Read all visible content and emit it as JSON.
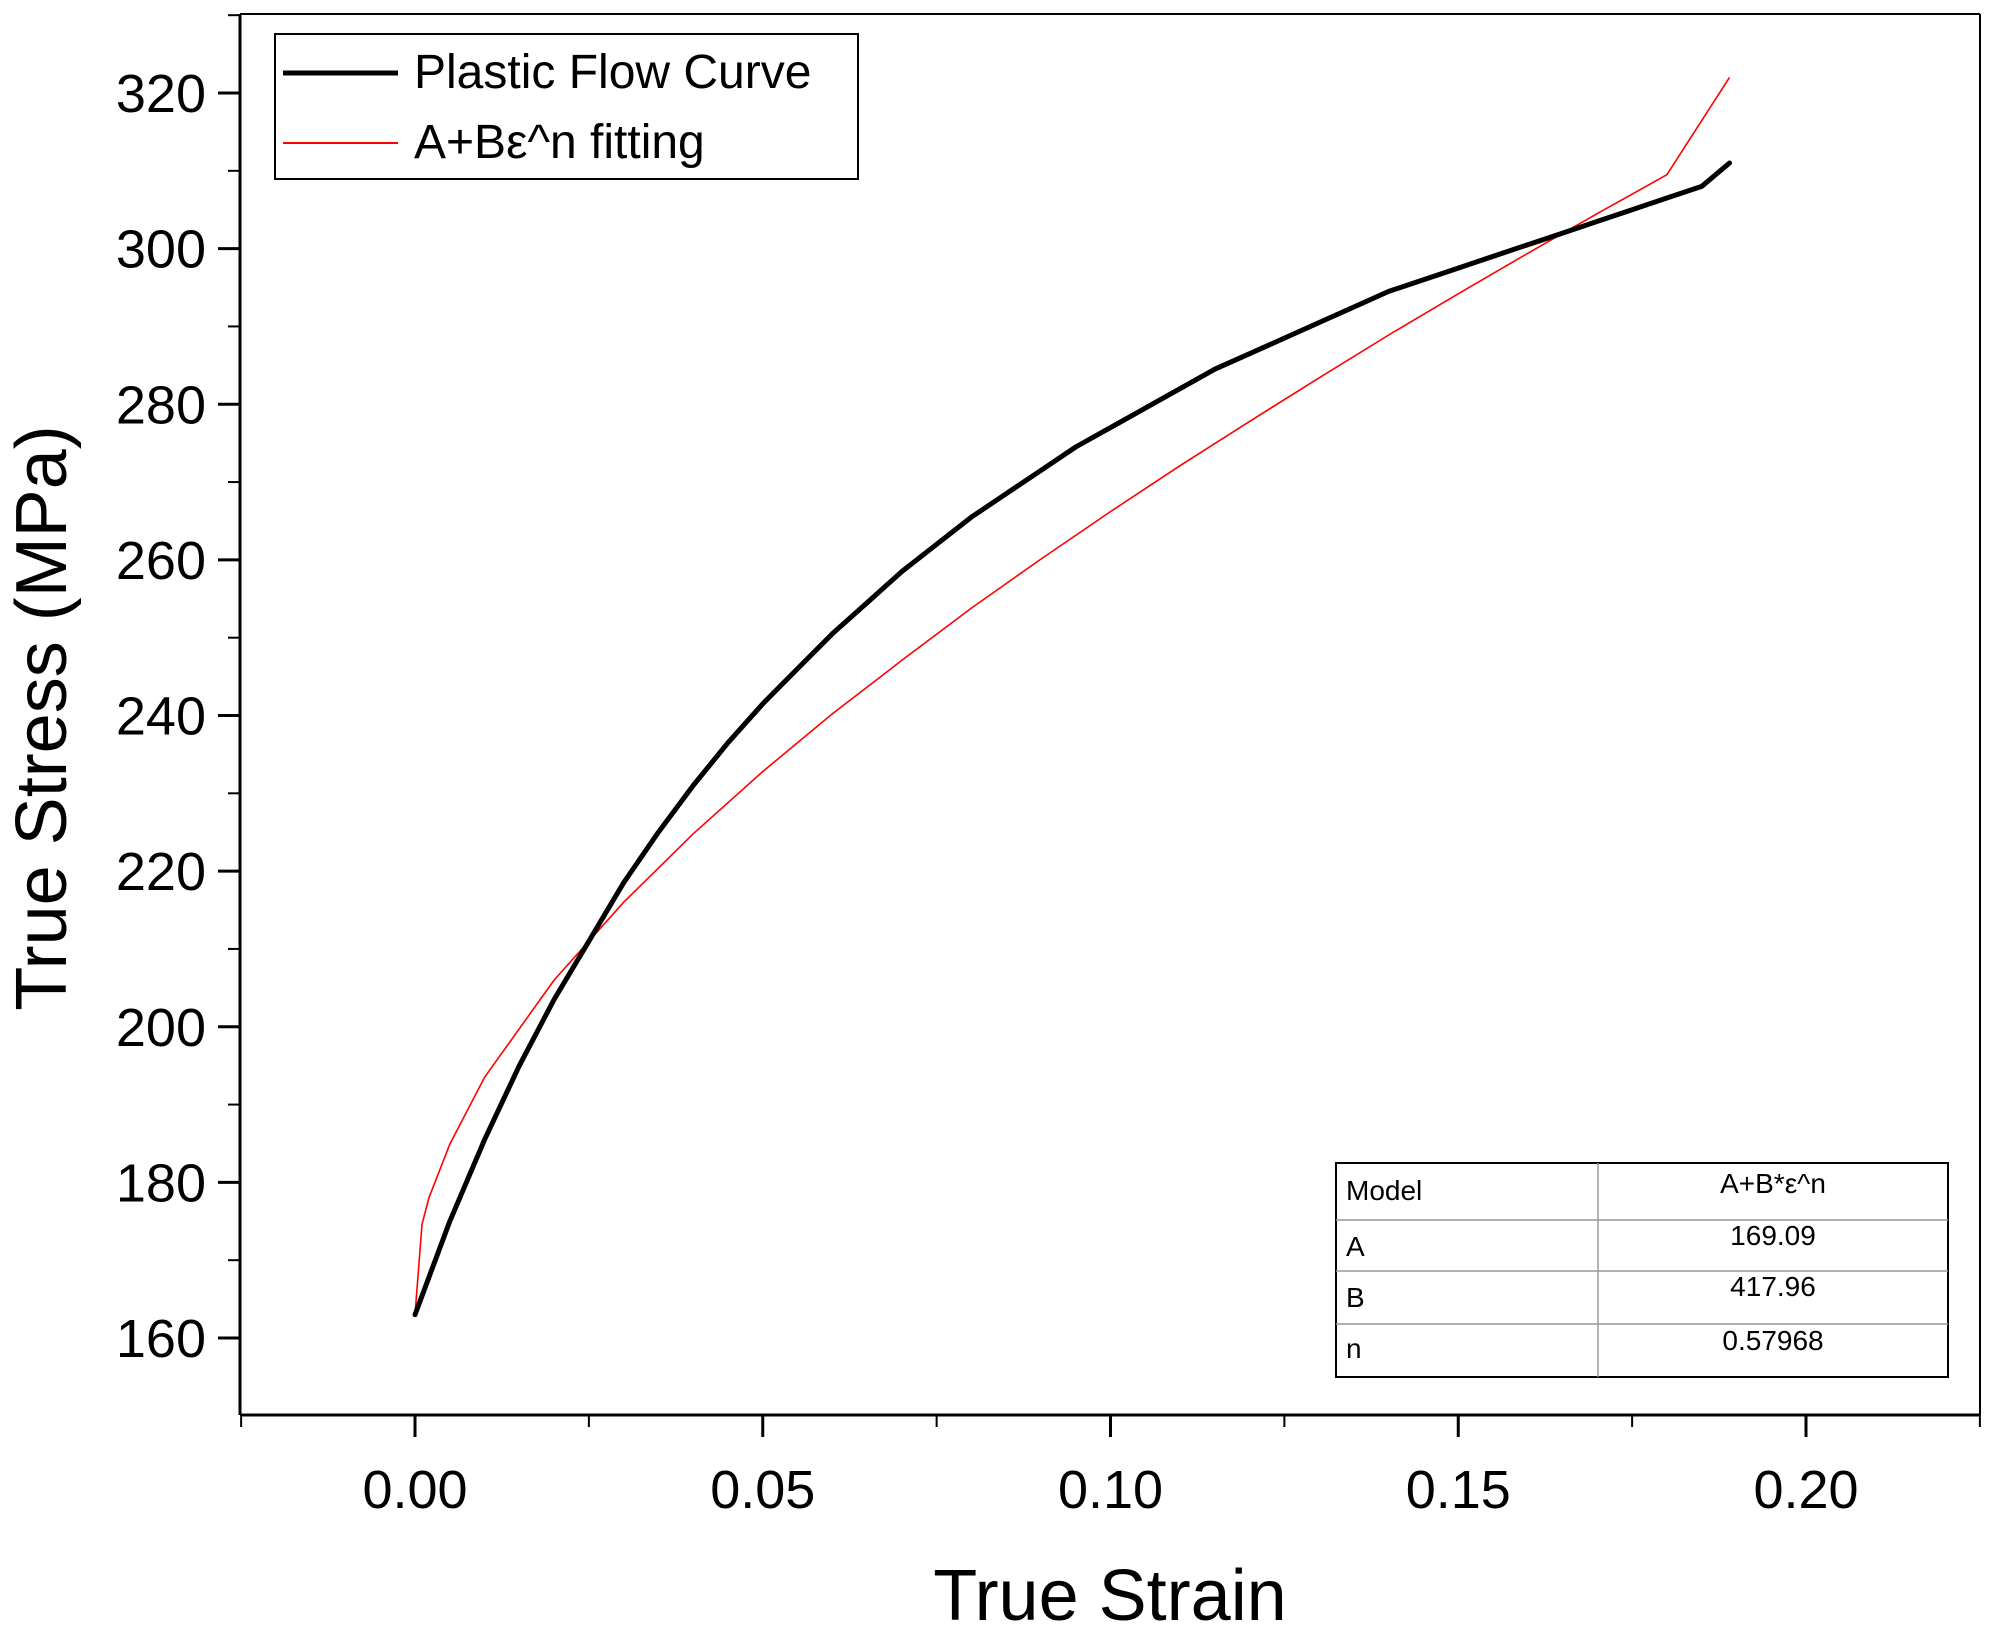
{
  "chart_data": {
    "type": "line",
    "xlabel": "True Strain",
    "ylabel": "True Stress (MPa)",
    "xlim": [
      -0.025,
      0.2256
    ],
    "ylim": [
      150,
      330
    ],
    "xticks": [
      0.0,
      0.05,
      0.1,
      0.15,
      0.2
    ],
    "xtick_labels": [
      "0.00",
      "0.05",
      "0.10",
      "0.15",
      "0.20"
    ],
    "yticks": [
      160,
      180,
      200,
      220,
      240,
      260,
      280,
      300,
      320
    ],
    "ytick_labels": [
      "160",
      "180",
      "200",
      "220",
      "240",
      "260",
      "280",
      "300",
      "320"
    ],
    "grid": false,
    "legend_position": "top-left",
    "series": [
      {
        "name": "Plastic Flow Curve",
        "color": "#000000",
        "x": [
          0.0,
          0.005,
          0.01,
          0.015,
          0.02,
          0.025,
          0.03,
          0.035,
          0.04,
          0.045,
          0.05,
          0.055,
          0.06,
          0.065,
          0.07,
          0.075,
          0.08,
          0.085,
          0.09,
          0.095,
          0.1,
          0.105,
          0.11,
          0.115,
          0.12,
          0.125,
          0.13,
          0.135,
          0.14,
          0.145,
          0.15,
          0.155,
          0.16,
          0.165,
          0.17,
          0.175,
          0.18,
          0.185,
          0.189
        ],
        "y": [
          163,
          175,
          185.5,
          195,
          203.5,
          211,
          218.5,
          225,
          231,
          236.5,
          241.5,
          246,
          250.5,
          254.5,
          258.5,
          262,
          265.5,
          268.5,
          271.5,
          274.5,
          277,
          279.5,
          282,
          284.5,
          286.5,
          288.5,
          290.5,
          292.5,
          294.5,
          296,
          297.5,
          299,
          300.5,
          302,
          303.5,
          305,
          306.5,
          308,
          311
        ]
      },
      {
        "name": "A+Bε^n fitting",
        "color": "#ff0000",
        "x": [
          0.0,
          0.001,
          0.002,
          0.005,
          0.01,
          0.02,
          0.03,
          0.04,
          0.05,
          0.06,
          0.07,
          0.08,
          0.09,
          0.1,
          0.11,
          0.12,
          0.13,
          0.14,
          0.15,
          0.16,
          0.17,
          0.18,
          0.189
        ],
        "y": [
          163,
          174.6,
          178.0,
          184.9,
          193.5,
          206.0,
          216.0,
          224.8,
          232.8,
          240.2,
          247.1,
          253.8,
          260.1,
          266.2,
          272.1,
          277.8,
          283.4,
          288.9,
          294.2,
          299.4,
          304.5,
          309.5,
          322
        ]
      }
    ],
    "annotation_table": {
      "rows": [
        {
          "label": "Model",
          "value": "A+B*ε^n"
        },
        {
          "label": "A",
          "value": "169.09"
        },
        {
          "label": "B",
          "value": "417.96"
        },
        {
          "label": "n",
          "value": "0.57968"
        }
      ]
    }
  }
}
